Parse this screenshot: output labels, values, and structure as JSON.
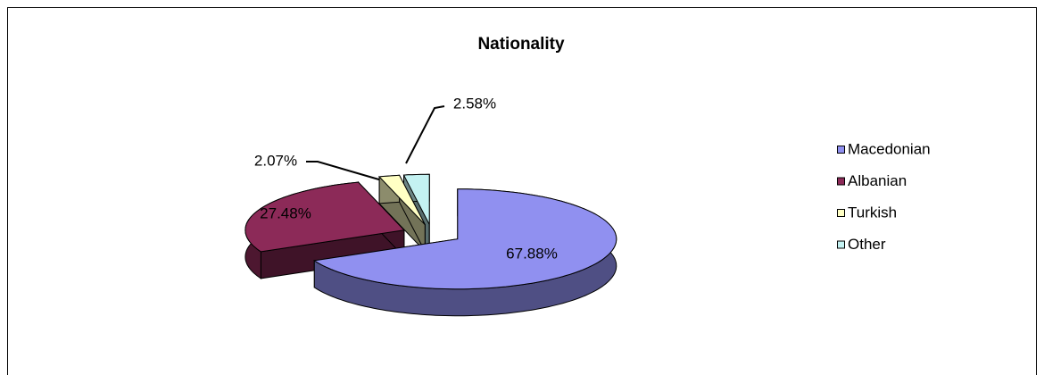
{
  "chart_data": {
    "type": "pie",
    "title": "Nationality",
    "categories": [
      "Macedonian",
      "Albanian",
      "Turkish",
      "Other"
    ],
    "values": [
      67.88,
      27.48,
      2.07,
      2.58
    ],
    "value_labels": [
      "67.88%",
      "27.48%",
      "2.07%",
      "2.58%"
    ],
    "colors": [
      "#9090f0",
      "#8c2a58",
      "#ffffc4",
      "#c4f2f2"
    ],
    "legend": "right"
  }
}
